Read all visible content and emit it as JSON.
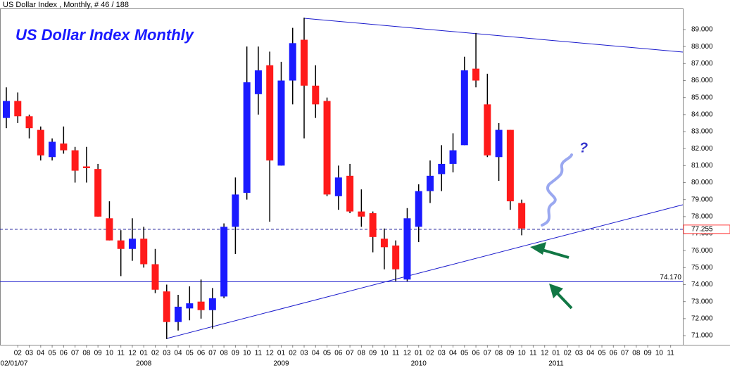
{
  "chart_data": {
    "type": "candlestick",
    "header": "US Dollar Index , Monthly, # 46 / 188",
    "title": "US Dollar Index Monthly",
    "annotation": "?",
    "start_date": "02/01/07",
    "years": [
      "2008",
      "2009",
      "2010",
      "2011"
    ],
    "up_color": "#1a1aff",
    "down_color": "#ff1a1a",
    "categories": [
      null,
      "02",
      "03",
      "04",
      "05",
      "06",
      "07",
      "08",
      "09",
      "10",
      "11",
      "12",
      "01",
      "02",
      "03",
      "04",
      "05",
      "06",
      "07",
      "08",
      "09",
      "10",
      "11",
      "12",
      "01",
      "02",
      "03",
      "04",
      "05",
      "06",
      "07",
      "08",
      "09",
      "10",
      "11",
      "12",
      "01",
      "02",
      "03",
      "04",
      "05",
      "06",
      "07",
      "08",
      "09",
      "10",
      "11",
      "12",
      "01",
      "02",
      "03",
      "04",
      "05",
      "06",
      "07",
      "08",
      "09",
      "10",
      "11"
    ],
    "open": [
      83.8,
      84.8,
      83.9,
      83.1,
      81.5,
      82.3,
      81.9,
      80.95,
      80.8,
      77.9,
      76.6,
      76.1,
      76.7,
      75.2,
      73.6,
      71.8,
      72.6,
      73.0,
      72.5,
      73.3,
      77.4,
      79.4,
      85.2,
      86.9,
      81.0,
      86.0,
      88.4,
      85.7,
      84.8,
      79.2,
      80.4,
      78.3,
      78.2,
      76.7,
      76.3,
      74.3,
      77.4,
      79.5,
      80.5,
      81.1,
      82.2,
      86.7,
      84.6,
      81.5,
      83.1,
      78.8,
      null,
      null,
      null,
      null,
      null,
      null,
      null,
      null,
      null,
      null,
      null,
      null,
      null
    ],
    "high": [
      85.6,
      85.3,
      84.0,
      83.3,
      82.6,
      83.3,
      82.1,
      82.1,
      81.1,
      78.9,
      77.2,
      77.9,
      77.4,
      76.1,
      74.0,
      73.4,
      73.9,
      74.3,
      73.8,
      77.6,
      80.3,
      88.0,
      88.0,
      87.7,
      87.1,
      89.1,
      89.7,
      86.9,
      85.0,
      81.0,
      81.1,
      79.6,
      78.3,
      77.3,
      76.6,
      78.5,
      79.9,
      81.3,
      82.2,
      82.9,
      87.4,
      88.8,
      86.4,
      83.5,
      83.1,
      79.0,
      null,
      null,
      null,
      null,
      null,
      null,
      null,
      null,
      null,
      null,
      null,
      null,
      null
    ],
    "low": [
      83.2,
      83.5,
      82.6,
      81.3,
      81.3,
      81.7,
      80.0,
      80.0,
      78.0,
      76.6,
      74.5,
      75.4,
      75.0,
      73.5,
      70.8,
      71.3,
      71.9,
      72.0,
      71.4,
      73.2,
      75.8,
      79.0,
      84.0,
      77.7,
      81.0,
      84.6,
      82.6,
      83.8,
      79.2,
      78.4,
      78.2,
      77.4,
      75.9,
      74.9,
      74.2,
      74.2,
      76.5,
      78.8,
      79.5,
      80.6,
      82.2,
      85.6,
      81.5,
      80.1,
      78.4,
      76.9,
      null,
      null,
      null,
      null,
      null,
      null,
      null,
      null,
      null,
      null,
      null,
      null,
      null
    ],
    "close": [
      84.8,
      83.9,
      83.2,
      81.6,
      82.4,
      81.9,
      80.7,
      80.85,
      78.0,
      76.6,
      76.1,
      76.7,
      75.2,
      73.7,
      71.8,
      72.7,
      72.9,
      72.5,
      73.2,
      77.4,
      79.3,
      85.9,
      86.6,
      81.3,
      86.0,
      88.2,
      85.7,
      84.6,
      79.3,
      80.3,
      78.3,
      78.0,
      76.8,
      76.2,
      74.9,
      77.9,
      79.5,
      80.4,
      81.1,
      81.9,
      86.6,
      86.0,
      81.6,
      83.1,
      78.9,
      77.3,
      null,
      null,
      null,
      null,
      null,
      null,
      null,
      null,
      null,
      null,
      null,
      null,
      null
    ],
    "reference_lines": [
      77.255,
      {
        "value": 74.17,
        "label": "74.170"
      }
    ],
    "ylim": [
      70.5,
      90.5
    ],
    "yticks": [
      {
        "value": 71,
        "label": "71.000"
      },
      {
        "value": 72,
        "label": "72.000"
      },
      {
        "value": 73,
        "label": "73.000"
      },
      {
        "value": 74,
        "label": "74.000"
      },
      {
        "value": 75,
        "label": "75.000"
      },
      {
        "value": 76,
        "label": "76.000"
      },
      {
        "value": 77,
        "label": "77.000"
      },
      {
        "value": 78,
        "label": "78.000"
      },
      {
        "value": 79,
        "label": "79.000"
      },
      {
        "value": 80,
        "label": "80.000"
      },
      {
        "value": 81,
        "label": "81.000"
      },
      {
        "value": 82,
        "label": "82.000"
      },
      {
        "value": 83,
        "label": "83.000"
      },
      {
        "value": 84,
        "label": "84.000"
      },
      {
        "value": 85,
        "label": "85.000"
      },
      {
        "value": 86,
        "label": "86.000"
      },
      {
        "value": 87,
        "label": "87.000"
      },
      {
        "value": 88,
        "label": "88.000"
      },
      {
        "value": 89,
        "label": "89.000"
      }
    ]
  }
}
